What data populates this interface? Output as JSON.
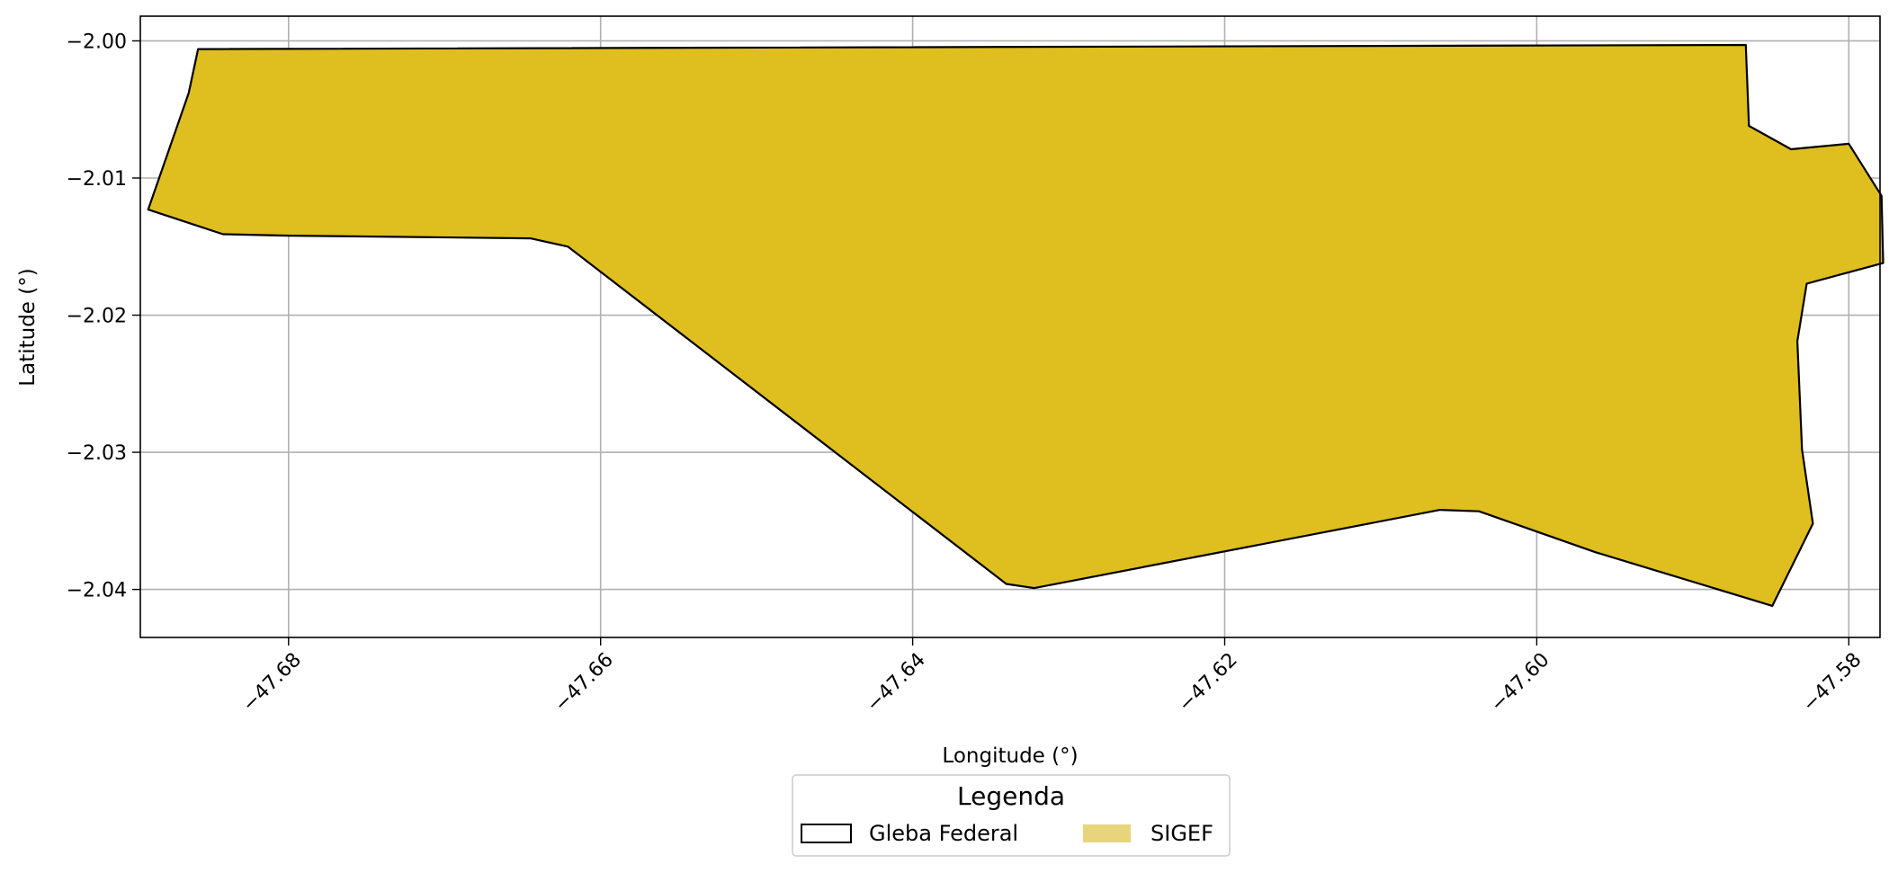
{
  "chart_data": {
    "type": "map",
    "xlabel": "Longitude (°)",
    "ylabel": "Latitude (°)",
    "xlim": [
      -47.6895,
      -47.578
    ],
    "ylim": [
      -2.0435,
      -1.9982
    ],
    "grid": true,
    "x_ticks": [
      {
        "value": -47.68,
        "label": "−47.68"
      },
      {
        "value": -47.66,
        "label": "−47.66"
      },
      {
        "value": -47.64,
        "label": "−47.64"
      },
      {
        "value": -47.62,
        "label": "−47.62"
      },
      {
        "value": -47.6,
        "label": "−47.60"
      },
      {
        "value": -47.58,
        "label": "−47.58"
      }
    ],
    "y_ticks": [
      {
        "value": -2.0,
        "label": "−2.00"
      },
      {
        "value": -2.01,
        "label": "−2.01"
      },
      {
        "value": -2.02,
        "label": "−2.02"
      },
      {
        "value": -2.03,
        "label": "−2.03"
      },
      {
        "value": -2.04,
        "label": "−2.04"
      }
    ],
    "layers": [
      {
        "name": "SIGEF",
        "fill": "#DFBE1F",
        "polygon": [
          [
            -47.6858,
            -2.0006
          ],
          [
            -47.5866,
            -2.0003
          ],
          [
            -47.5864,
            -2.0062
          ],
          [
            -47.5837,
            -2.0079
          ],
          [
            -47.58,
            -2.0075
          ],
          [
            -47.5779,
            -2.0113
          ],
          [
            -47.5778,
            -2.0162
          ],
          [
            -47.5827,
            -2.0177
          ],
          [
            -47.5833,
            -2.0219
          ],
          [
            -47.583,
            -2.0298
          ],
          [
            -47.5823,
            -2.0352
          ],
          [
            -47.5849,
            -2.0412
          ],
          [
            -47.5962,
            -2.0373
          ],
          [
            -47.6037,
            -2.0343
          ],
          [
            -47.6062,
            -2.0342
          ],
          [
            -47.6322,
            -2.0399
          ],
          [
            -47.634,
            -2.0396
          ],
          [
            -47.6621,
            -2.015
          ],
          [
            -47.6645,
            -2.0144
          ],
          [
            -47.68,
            -2.0142
          ],
          [
            -47.6842,
            -2.0141
          ],
          [
            -47.689,
            -2.0123
          ],
          [
            -47.6864,
            -2.0038
          ]
        ]
      },
      {
        "name": "Gleba Federal",
        "fill": "none",
        "stroke": "#000000",
        "polygon": [
          [
            -47.6858,
            -2.0006
          ],
          [
            -47.5866,
            -2.0003
          ],
          [
            -47.5864,
            -2.0062
          ],
          [
            -47.5837,
            -2.0079
          ],
          [
            -47.58,
            -2.0075
          ],
          [
            -47.5779,
            -2.0113
          ],
          [
            -47.5778,
            -2.0162
          ],
          [
            -47.5827,
            -2.0177
          ],
          [
            -47.5833,
            -2.0219
          ],
          [
            -47.583,
            -2.0298
          ],
          [
            -47.5823,
            -2.0352
          ],
          [
            -47.5849,
            -2.0412
          ],
          [
            -47.5962,
            -2.0373
          ],
          [
            -47.6037,
            -2.0343
          ],
          [
            -47.6062,
            -2.0342
          ],
          [
            -47.6322,
            -2.0399
          ],
          [
            -47.634,
            -2.0396
          ],
          [
            -47.6621,
            -2.015
          ],
          [
            -47.6645,
            -2.0144
          ],
          [
            -47.68,
            -2.0142
          ],
          [
            -47.6842,
            -2.0141
          ],
          [
            -47.689,
            -2.0123
          ],
          [
            -47.6864,
            -2.0038
          ]
        ]
      }
    ],
    "legend": {
      "title": "Legenda",
      "placement": "bottom-center",
      "entries": [
        {
          "label": "Gleba Federal",
          "swatch": "outline",
          "stroke": "#000000"
        },
        {
          "label": "SIGEF",
          "swatch": "fill",
          "fill": "#E8D47A"
        }
      ]
    }
  }
}
